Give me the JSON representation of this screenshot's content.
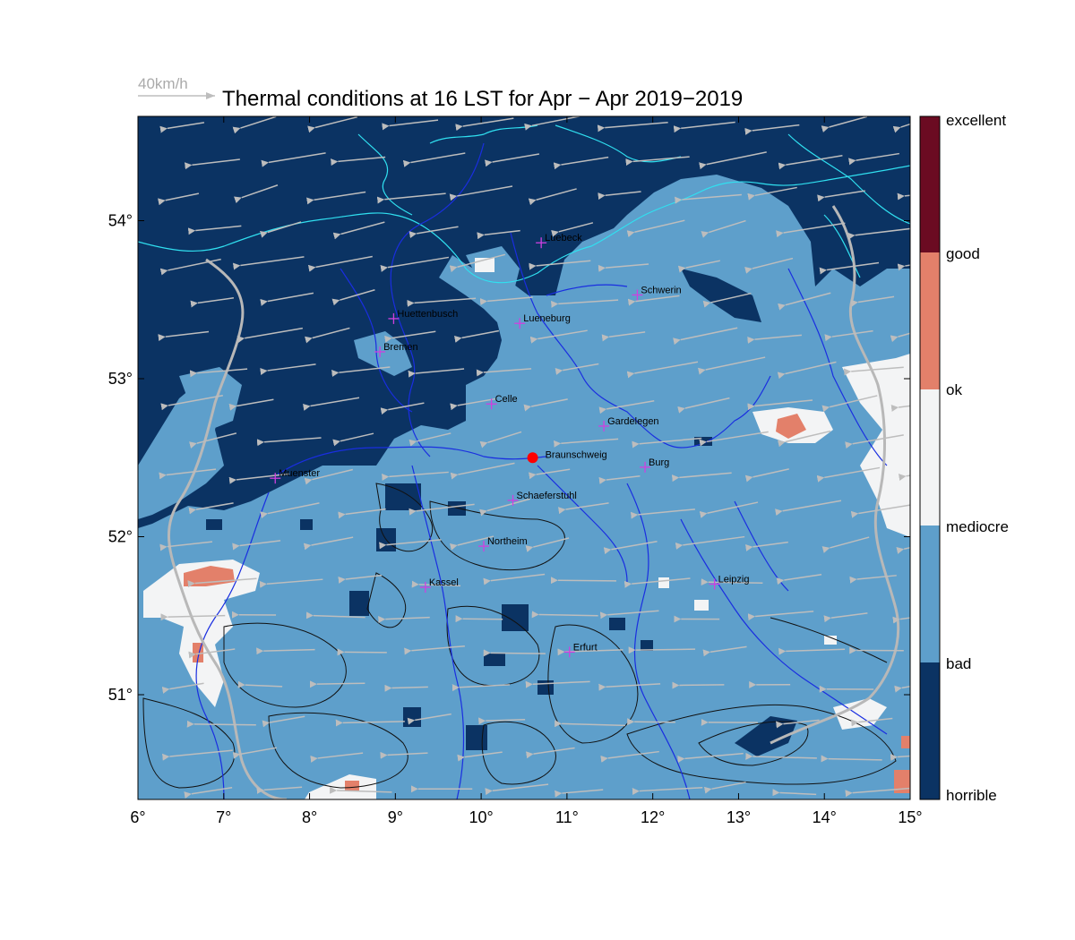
{
  "title": "Thermal conditions at 16 LST for Apr − Apr  2019−2019",
  "wind_legend": "40km/h",
  "colors": {
    "horrible": "#0b3363",
    "bad": "#5e9fcb",
    "mediocre": "#f3f4f5",
    "ok": "#e3806a",
    "good": "#6b0b22",
    "coast": "#30e0f0",
    "rivers": "#1a2ee0",
    "borders": "#b8b8b8",
    "contours": "#111111",
    "arrows": "#bdbdbd",
    "site": "#ff0000",
    "city_marker": "#d040e0"
  },
  "x_ticks": [
    "6°",
    "7°",
    "8°",
    "9°",
    "10°",
    "11°",
    "12°",
    "13°",
    "14°",
    "15°"
  ],
  "y_ticks": [
    "54°",
    "53°",
    "52°",
    "51°"
  ],
  "colorbar_labels": [
    "excellent",
    "good",
    "ok",
    "mediocre",
    "bad",
    "horrible"
  ],
  "site": {
    "name": "Braunschweig",
    "lon": 10.6,
    "lat": 52.5
  },
  "cities": [
    {
      "name": "Luebeck",
      "lon": 10.7,
      "lat": 53.86
    },
    {
      "name": "Schwerin",
      "lon": 11.82,
      "lat": 53.53
    },
    {
      "name": "Huettenbusch",
      "lon": 8.98,
      "lat": 53.38
    },
    {
      "name": "Lueneburg",
      "lon": 10.45,
      "lat": 53.35
    },
    {
      "name": "Bremen",
      "lon": 8.82,
      "lat": 53.17
    },
    {
      "name": "Celle",
      "lon": 10.12,
      "lat": 52.84
    },
    {
      "name": "Gardelegen",
      "lon": 11.43,
      "lat": 52.7
    },
    {
      "name": "Burg",
      "lon": 11.91,
      "lat": 52.44
    },
    {
      "name": "Muenster",
      "lon": 7.6,
      "lat": 52.37
    },
    {
      "name": "Schaeferstuhl",
      "lon": 10.37,
      "lat": 52.23
    },
    {
      "name": "Northeim",
      "lon": 10.03,
      "lat": 51.94
    },
    {
      "name": "Leipzig",
      "lon": 12.72,
      "lat": 51.7
    },
    {
      "name": "Kassel",
      "lon": 9.35,
      "lat": 51.68
    },
    {
      "name": "Erfurt",
      "lon": 11.03,
      "lat": 51.27
    }
  ]
}
